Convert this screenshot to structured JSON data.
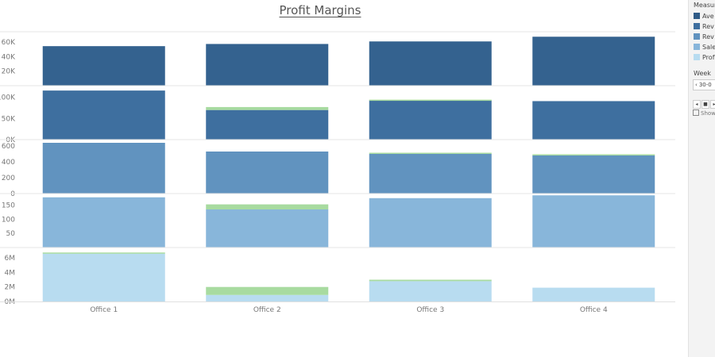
{
  "chart_data": {
    "type": "bar",
    "title": "Profit Margins",
    "categories": [
      "Office 1",
      "Office 2",
      "Office 3",
      "Office 4"
    ],
    "panels": [
      {
        "color": "#34628f",
        "ylim": [
          0,
          70000
        ],
        "ticks": [
          {
            "v": 20000,
            "label": "20K"
          },
          {
            "v": 40000,
            "label": "40K"
          },
          {
            "v": 60000,
            "label": "60K"
          }
        ],
        "values": [
          54500,
          57500,
          61000,
          67500
        ],
        "profit": [
          0,
          0,
          0,
          0
        ]
      },
      {
        "color": "#3e6f9f",
        "ylim": [
          0,
          120000
        ],
        "ticks": [
          {
            "v": 0,
            "label": "0K"
          },
          {
            "v": 50000,
            "label": "50K"
          },
          {
            "v": 100000,
            "label": "100K"
          }
        ],
        "values": [
          116000,
          70000,
          93000,
          91000
        ],
        "profit": [
          0,
          7000,
          1500,
          0
        ]
      },
      {
        "color": "#6193bf",
        "ylim": [
          0,
          640
        ],
        "ticks": [
          {
            "v": 0,
            "label": "0"
          },
          {
            "v": 200,
            "label": "200"
          },
          {
            "v": 400,
            "label": "400"
          },
          {
            "v": 600,
            "label": "600"
          }
        ],
        "values": [
          640,
          530,
          500,
          480
        ],
        "profit": [
          0,
          0,
          15,
          15
        ]
      },
      {
        "color": "#88b6da",
        "ylim": [
          0,
          180
        ],
        "ticks": [
          {
            "v": 50,
            "label": "50"
          },
          {
            "v": 100,
            "label": "100"
          },
          {
            "v": 150,
            "label": "150"
          }
        ],
        "values": [
          178,
          135,
          175,
          185
        ],
        "profit": [
          0,
          18,
          0,
          0
        ]
      },
      {
        "color": "#b8dcf0",
        "ylim": [
          0,
          7000000
        ],
        "ticks": [
          {
            "v": 0,
            "label": "0M"
          },
          {
            "v": 2000000,
            "label": "2M"
          },
          {
            "v": 4000000,
            "label": "4M"
          },
          {
            "v": 6000000,
            "label": "6M"
          }
        ],
        "values": [
          6600000,
          900000,
          2800000,
          1900000
        ],
        "profit": [
          150000,
          1100000,
          200000,
          0
        ]
      }
    ],
    "profit_color": "#a8dba0"
  },
  "legend": {
    "title": "Measure",
    "items": [
      {
        "label": "Ave",
        "color": "#2f5b87"
      },
      {
        "label": "Rev",
        "color": "#3e6f9f"
      },
      {
        "label": "Rev",
        "color": "#6193bf"
      },
      {
        "label": "Sale",
        "color": "#88b6da"
      },
      {
        "label": "Prof",
        "color": "#b8dcf0"
      }
    ]
  },
  "filter": {
    "title": "Week",
    "value": "30-0",
    "show_label": "Show"
  }
}
